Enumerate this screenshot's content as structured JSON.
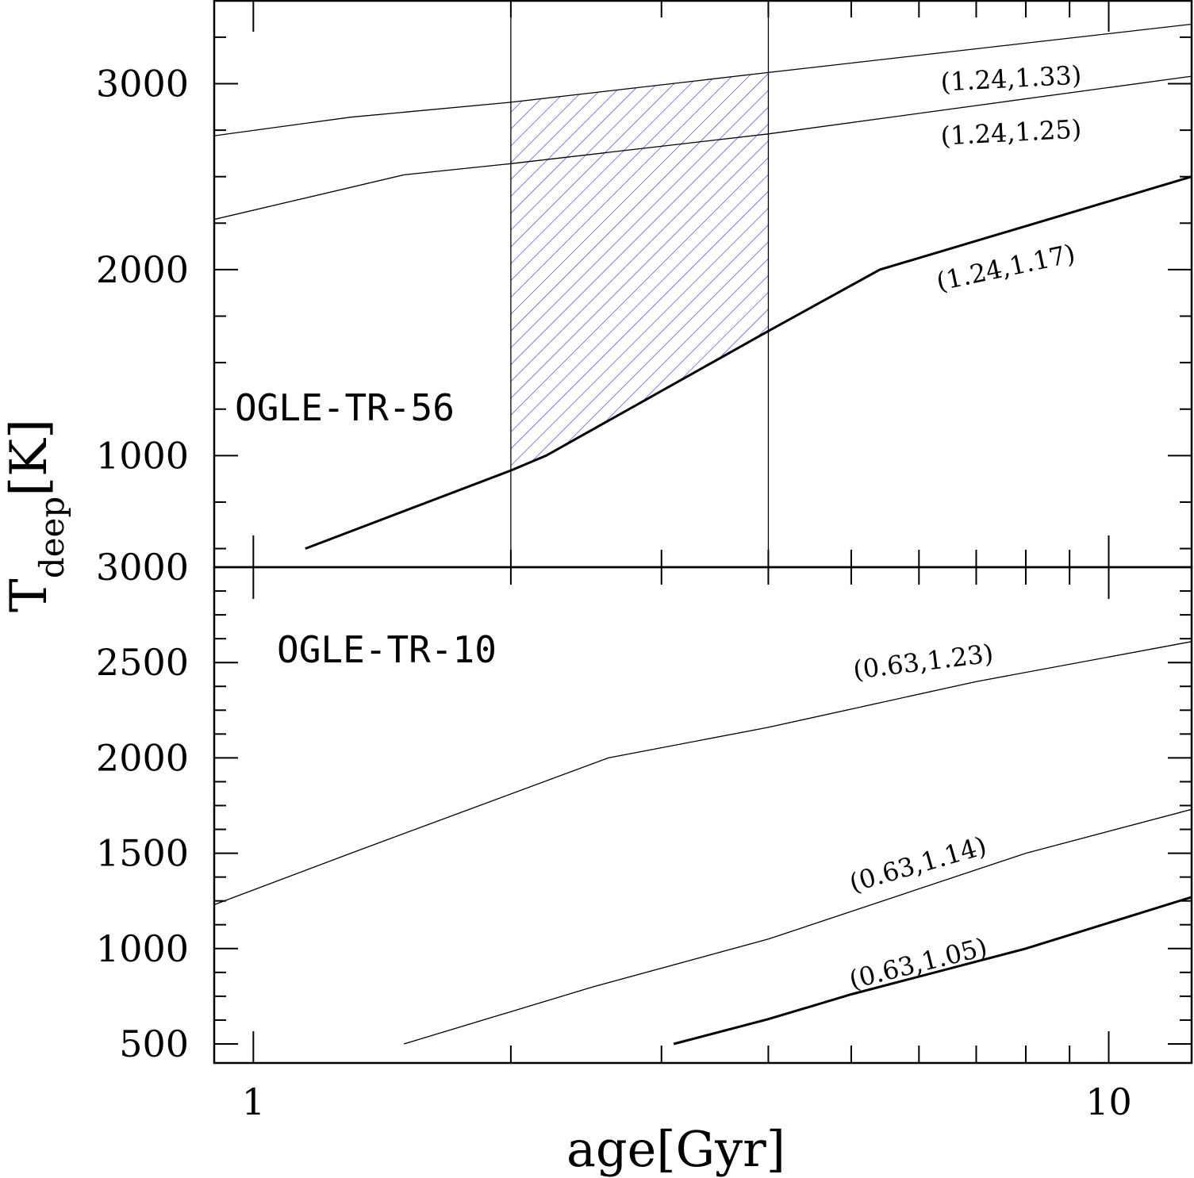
{
  "chart_data": {
    "type": "line",
    "xlabel": "age[Gyr]",
    "ylabel": {
      "main": "T",
      "sub": "deep",
      "unit": "[K]"
    },
    "x_scale": "log",
    "xlim": [
      0.9,
      12.5
    ],
    "x_ticks": [
      1,
      10
    ],
    "x_tick_labels": [
      "1",
      "10"
    ],
    "panels": [
      {
        "name": "OGLE-TR-56",
        "label": "OGLE-TR-56",
        "ylim": [
          400,
          3450
        ],
        "y_ticks": [
          1000,
          2000,
          3000
        ],
        "y_tick_labels": [
          "1000",
          "2000",
          "3000"
        ],
        "vlines": [
          2,
          4
        ],
        "hatched_region": {
          "x": [
            2,
            4
          ],
          "upper_series": "(1.24,1.33)",
          "lower_series": "(1.24,1.17)",
          "color": "#3a3ae0"
        },
        "series": [
          {
            "name": "(1.24,1.33)",
            "x": [
              0.9,
              1.3,
              2.0,
              4.0,
              12.5
            ],
            "y": [
              2720,
              2820,
              2900,
              3060,
              3320
            ],
            "weight": "thin"
          },
          {
            "name": "(1.24,1.25)",
            "x": [
              0.9,
              1.5,
              2.0,
              4.0,
              12.5
            ],
            "y": [
              2270,
              2510,
              2570,
              2730,
              3040
            ],
            "weight": "thin"
          },
          {
            "name": "(1.24,1.17)",
            "x": [
              1.15,
              2.0,
              2.2,
              4.0,
              5.4,
              12.5
            ],
            "y": [
              500,
              920,
              1000,
              1670,
              2000,
              2500
            ],
            "weight": "thick"
          }
        ]
      },
      {
        "name": "OGLE-TR-10",
        "label": "OGLE-TR-10",
        "ylim": [
          400,
          3000
        ],
        "y_ticks": [
          500,
          1000,
          1500,
          2000,
          2500,
          3000
        ],
        "y_tick_labels": [
          "500",
          "1000",
          "1500",
          "2000",
          "2500",
          "3000"
        ],
        "series": [
          {
            "name": "(0.63,1.23)",
            "x": [
              0.9,
              1.3,
              2.6,
              4.0,
              7.0,
              12.5
            ],
            "y": [
              1230,
              1500,
              2000,
              2160,
              2400,
              2610
            ],
            "weight": "thin"
          },
          {
            "name": "(0.63,1.14)",
            "x": [
              1.5,
              2.5,
              4.0,
              8.0,
              12.5
            ],
            "y": [
              500,
              800,
              1050,
              1500,
              1730
            ],
            "weight": "thin"
          },
          {
            "name": "(0.63,1.05)",
            "x": [
              3.1,
              4.0,
              5.0,
              8.0,
              12.5
            ],
            "y": [
              500,
              630,
              760,
              1000,
              1270
            ],
            "weight": "thick"
          }
        ]
      }
    ]
  }
}
